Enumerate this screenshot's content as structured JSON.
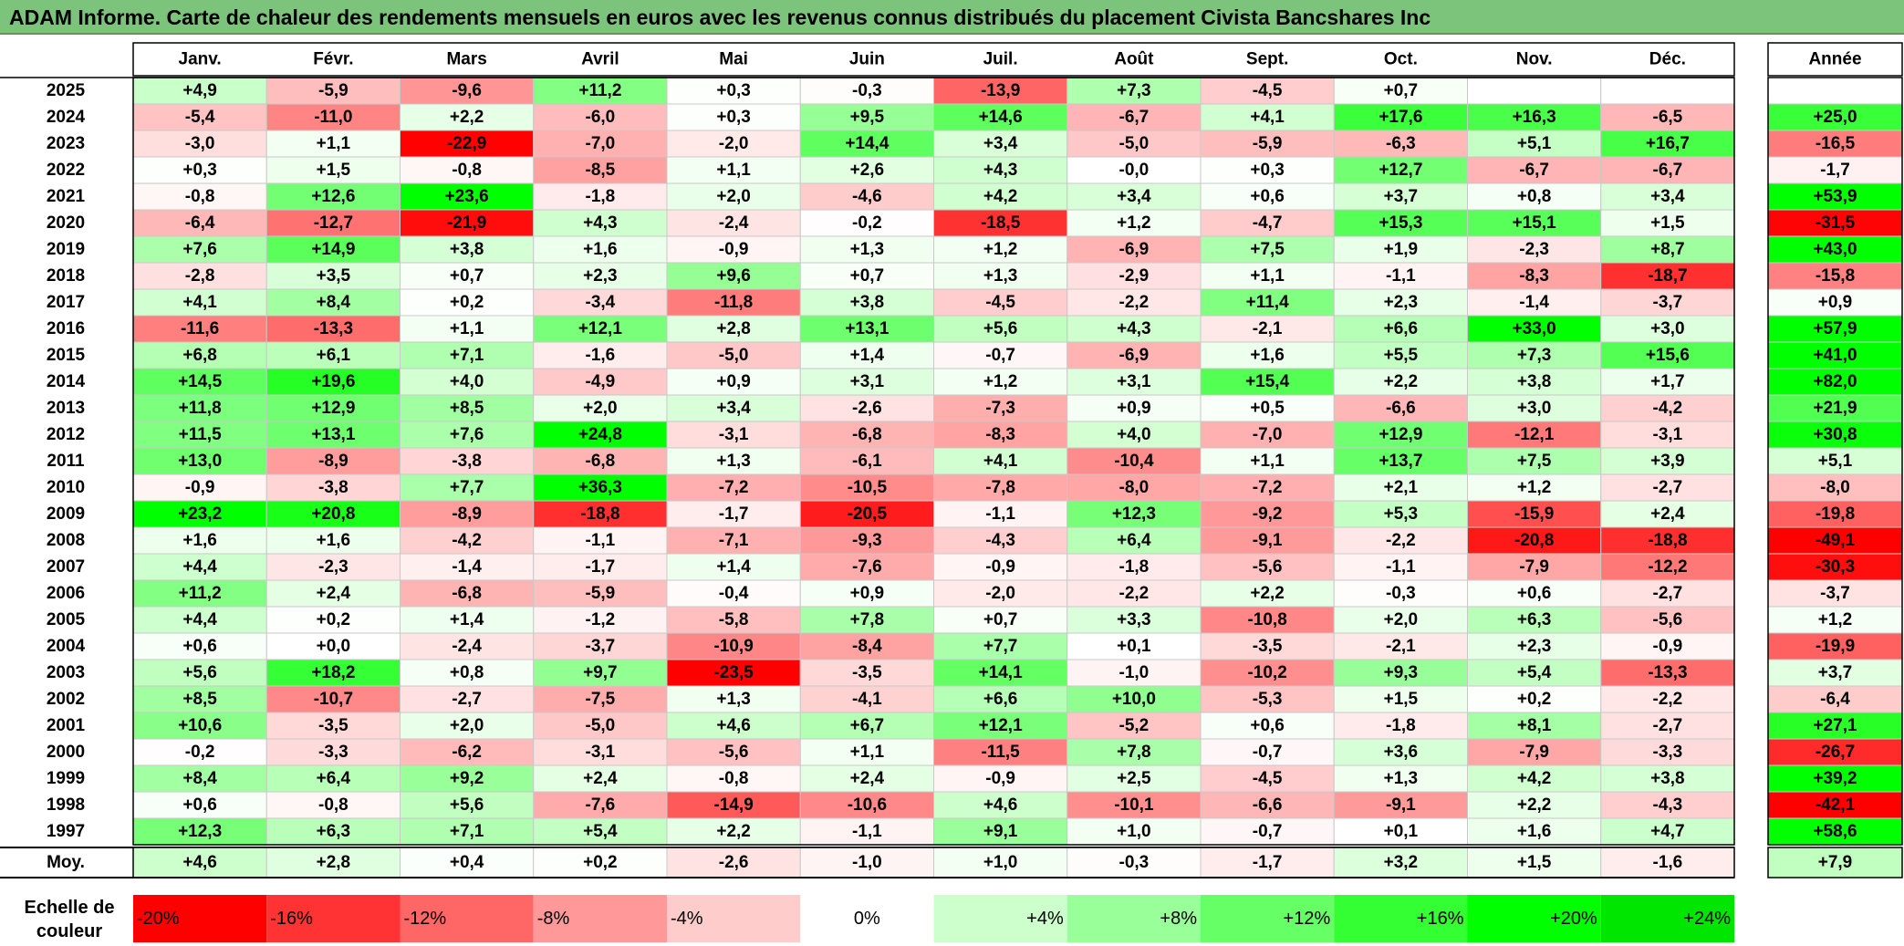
{
  "title": "ADAM Informe. Carte de chaleur des rendements mensuels en euros avec les revenus connus distribués du placement Civista Bancshares Inc",
  "chart_data": {
    "type": "heatmap",
    "months": [
      "Janv.",
      "Févr.",
      "Mars",
      "Avril",
      "Mai",
      "Juin",
      "Juil.",
      "Août",
      "Sept.",
      "Oct.",
      "Nov.",
      "Déc."
    ],
    "annual_header": "Année",
    "rows": [
      {
        "year": "2025",
        "values": [
          "+4,9",
          "-5,9",
          "-9,6",
          "+11,2",
          "+0,3",
          "-0,3",
          "-13,9",
          "+7,3",
          "-4,5",
          "+0,7",
          "",
          ""
        ],
        "annual": ""
      },
      {
        "year": "2024",
        "values": [
          "-5,4",
          "-11,0",
          "+2,2",
          "-6,0",
          "+0,3",
          "+9,5",
          "+14,6",
          "-6,7",
          "+4,1",
          "+17,6",
          "+16,3",
          "-6,5"
        ],
        "annual": "+25,0"
      },
      {
        "year": "2023",
        "values": [
          "-3,0",
          "+1,1",
          "-22,9",
          "-7,0",
          "-2,0",
          "+14,4",
          "+3,4",
          "-5,0",
          "-5,9",
          "-6,3",
          "+5,1",
          "+16,7"
        ],
        "annual": "-16,5"
      },
      {
        "year": "2022",
        "values": [
          "+0,3",
          "+1,5",
          "-0,8",
          "-8,5",
          "+1,1",
          "+2,6",
          "+4,3",
          "-0,0",
          "+0,3",
          "+12,7",
          "-6,7",
          "-6,7"
        ],
        "annual": "-1,7"
      },
      {
        "year": "2021",
        "values": [
          "-0,8",
          "+12,6",
          "+23,6",
          "-1,8",
          "+2,0",
          "-4,6",
          "+4,2",
          "+3,4",
          "+0,6",
          "+3,7",
          "+0,8",
          "+3,4"
        ],
        "annual": "+53,9"
      },
      {
        "year": "2020",
        "values": [
          "-6,4",
          "-12,7",
          "-21,9",
          "+4,3",
          "-2,4",
          "-0,2",
          "-18,5",
          "+1,2",
          "-4,7",
          "+15,3",
          "+15,1",
          "+1,5"
        ],
        "annual": "-31,5"
      },
      {
        "year": "2019",
        "values": [
          "+7,6",
          "+14,9",
          "+3,8",
          "+1,6",
          "-0,9",
          "+1,3",
          "+1,2",
          "-6,9",
          "+7,5",
          "+1,9",
          "-2,3",
          "+8,7"
        ],
        "annual": "+43,0"
      },
      {
        "year": "2018",
        "values": [
          "-2,8",
          "+3,5",
          "+0,7",
          "+2,3",
          "+9,6",
          "+0,7",
          "+1,3",
          "-2,9",
          "+1,1",
          "-1,1",
          "-8,3",
          "-18,7"
        ],
        "annual": "-15,8"
      },
      {
        "year": "2017",
        "values": [
          "+4,1",
          "+8,4",
          "+0,2",
          "-3,4",
          "-11,8",
          "+3,8",
          "-4,5",
          "-2,2",
          "+11,4",
          "+2,3",
          "-1,4",
          "-3,7"
        ],
        "annual": "+0,9"
      },
      {
        "year": "2016",
        "values": [
          "-11,6",
          "-13,3",
          "+1,1",
          "+12,1",
          "+2,8",
          "+13,1",
          "+5,6",
          "+4,3",
          "-2,1",
          "+6,6",
          "+33,0",
          "+3,0"
        ],
        "annual": "+57,9"
      },
      {
        "year": "2015",
        "values": [
          "+6,8",
          "+6,1",
          "+7,1",
          "-1,6",
          "-5,0",
          "+1,4",
          "-0,7",
          "-6,9",
          "+1,6",
          "+5,5",
          "+7,3",
          "+15,6"
        ],
        "annual": "+41,0"
      },
      {
        "year": "2014",
        "values": [
          "+14,5",
          "+19,6",
          "+4,0",
          "-4,9",
          "+0,9",
          "+3,1",
          "+1,2",
          "+3,1",
          "+15,4",
          "+2,2",
          "+3,8",
          "+1,7"
        ],
        "annual": "+82,0"
      },
      {
        "year": "2013",
        "values": [
          "+11,8",
          "+12,9",
          "+8,5",
          "+2,0",
          "+3,4",
          "-2,6",
          "-7,3",
          "+0,9",
          "+0,5",
          "-6,6",
          "+3,0",
          "-4,2"
        ],
        "annual": "+21,9"
      },
      {
        "year": "2012",
        "values": [
          "+11,5",
          "+13,1",
          "+7,6",
          "+24,8",
          "-3,1",
          "-6,8",
          "-8,3",
          "+4,0",
          "-7,0",
          "+12,9",
          "-12,1",
          "-3,1"
        ],
        "annual": "+30,8"
      },
      {
        "year": "2011",
        "values": [
          "+13,0",
          "-8,9",
          "-3,8",
          "-6,8",
          "+1,3",
          "-6,1",
          "+4,1",
          "-10,4",
          "+1,1",
          "+13,7",
          "+7,5",
          "+3,9"
        ],
        "annual": "+5,1"
      },
      {
        "year": "2010",
        "values": [
          "-0,9",
          "-3,8",
          "+7,7",
          "+36,3",
          "-7,2",
          "-10,5",
          "-7,8",
          "-8,0",
          "-7,2",
          "+2,1",
          "+1,2",
          "-2,7"
        ],
        "annual": "-8,0"
      },
      {
        "year": "2009",
        "values": [
          "+23,2",
          "+20,8",
          "-8,9",
          "-18,8",
          "-1,7",
          "-20,5",
          "-1,1",
          "+12,3",
          "-9,2",
          "+5,3",
          "-15,9",
          "+2,4"
        ],
        "annual": "-19,8"
      },
      {
        "year": "2008",
        "values": [
          "+1,6",
          "+1,6",
          "-4,2",
          "-1,1",
          "-7,1",
          "-9,3",
          "-4,3",
          "+6,4",
          "-9,1",
          "-2,2",
          "-20,8",
          "-18,8"
        ],
        "annual": "-49,1"
      },
      {
        "year": "2007",
        "values": [
          "+4,4",
          "-2,3",
          "-1,4",
          "-1,7",
          "+1,4",
          "-7,6",
          "-0,9",
          "-1,8",
          "-5,6",
          "-1,1",
          "-7,9",
          "-12,2"
        ],
        "annual": "-30,3"
      },
      {
        "year": "2006",
        "values": [
          "+11,2",
          "+2,4",
          "-6,8",
          "-5,9",
          "-0,4",
          "+0,9",
          "-2,0",
          "-2,2",
          "+2,2",
          "-0,3",
          "+0,6",
          "-2,7"
        ],
        "annual": "-3,7"
      },
      {
        "year": "2005",
        "values": [
          "+4,4",
          "+0,2",
          "+1,4",
          "-1,2",
          "-5,8",
          "+7,8",
          "+0,7",
          "+3,3",
          "-10,8",
          "+2,0",
          "+6,3",
          "-5,6"
        ],
        "annual": "+1,2"
      },
      {
        "year": "2004",
        "values": [
          "+0,6",
          "+0,0",
          "-2,4",
          "-3,7",
          "-10,9",
          "-8,4",
          "+7,7",
          "+0,1",
          "-3,5",
          "-2,1",
          "+2,3",
          "-0,9"
        ],
        "annual": "-19,9"
      },
      {
        "year": "2003",
        "values": [
          "+5,6",
          "+18,2",
          "+0,8",
          "+9,7",
          "-23,5",
          "-3,5",
          "+14,1",
          "-1,0",
          "-10,2",
          "+9,3",
          "+5,4",
          "-13,3"
        ],
        "annual": "+3,7"
      },
      {
        "year": "2002",
        "values": [
          "+8,5",
          "-10,7",
          "-2,7",
          "-7,5",
          "+1,3",
          "-4,1",
          "+6,6",
          "+10,0",
          "-5,3",
          "+1,5",
          "+0,2",
          "-2,2"
        ],
        "annual": "-6,4"
      },
      {
        "year": "2001",
        "values": [
          "+10,6",
          "-3,5",
          "+2,0",
          "-5,0",
          "+4,6",
          "+6,7",
          "+12,1",
          "-5,2",
          "+0,6",
          "-1,8",
          "+8,1",
          "-2,7"
        ],
        "annual": "+27,1"
      },
      {
        "year": "2000",
        "values": [
          "-0,2",
          "-3,3",
          "-6,2",
          "-3,1",
          "-5,6",
          "+1,1",
          "-11,5",
          "+7,8",
          "-0,7",
          "+3,6",
          "-7,9",
          "-3,3"
        ],
        "annual": "-26,7"
      },
      {
        "year": "1999",
        "values": [
          "+8,4",
          "+6,4",
          "+9,2",
          "+2,4",
          "-0,8",
          "+2,4",
          "-0,9",
          "+2,5",
          "-4,5",
          "+1,3",
          "+4,2",
          "+3,8"
        ],
        "annual": "+39,2"
      },
      {
        "year": "1998",
        "values": [
          "+0,6",
          "-0,8",
          "+5,6",
          "-7,6",
          "-14,9",
          "-10,6",
          "+4,6",
          "-10,1",
          "-6,6",
          "-9,1",
          "+2,2",
          "-4,3"
        ],
        "annual": "-42,1"
      },
      {
        "year": "1997",
        "values": [
          "+12,3",
          "+6,3",
          "+7,1",
          "+5,4",
          "+2,2",
          "-1,1",
          "+9,1",
          "+1,0",
          "-0,7",
          "+0,1",
          "+1,6",
          "+4,7"
        ],
        "annual": "+58,6"
      }
    ],
    "average": {
      "label": "Moy.",
      "values": [
        "+4,6",
        "+2,8",
        "+0,4",
        "+0,2",
        "-2,6",
        "-1,0",
        "+1,0",
        "-0,3",
        "-1,7",
        "+3,2",
        "+1,5",
        "-1,6"
      ],
      "annual": "+7,9"
    },
    "scale": {
      "label_line1": "Echelle de",
      "label_line2": "couleur",
      "stops": [
        {
          "label": "-20%",
          "color": "#ff0000"
        },
        {
          "label": "-16%",
          "color": "#ff3333"
        },
        {
          "label": "-12%",
          "color": "#ff6666"
        },
        {
          "label": "-8%",
          "color": "#ff9999"
        },
        {
          "label": "-4%",
          "color": "#ffcccc"
        },
        {
          "label": "0%",
          "color": "#ffffff"
        },
        {
          "label": "+4%",
          "color": "#ccffcc"
        },
        {
          "label": "+8%",
          "color": "#99ff99"
        },
        {
          "label": "+12%",
          "color": "#66ff66"
        },
        {
          "label": "+16%",
          "color": "#33ff33"
        },
        {
          "label": "+20%",
          "color": "#00ff00"
        },
        {
          "label": "+24%",
          "color": "#00e600"
        }
      ]
    },
    "colors": {
      "negative_max": "#ff0000",
      "neutral": "#ffffff",
      "positive_max": "#00ff00",
      "title_bar": "#7cc47c"
    }
  }
}
